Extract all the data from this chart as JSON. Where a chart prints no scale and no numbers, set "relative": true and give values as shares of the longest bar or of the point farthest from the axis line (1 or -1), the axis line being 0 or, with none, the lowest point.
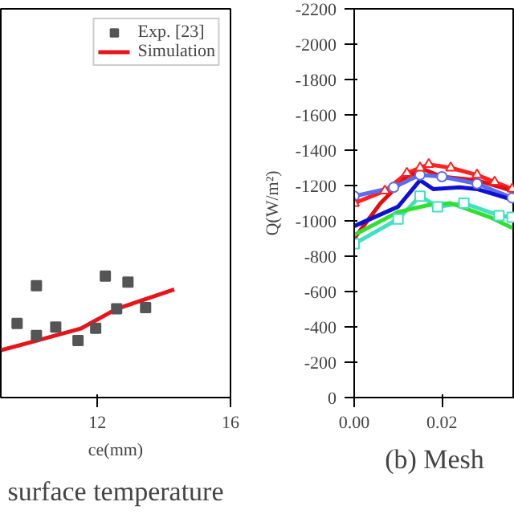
{
  "chart_data": [
    {
      "type": "scatter",
      "title": "surface temperature",
      "xlabel": "ce(mm)",
      "relative": true,
      "xlim": [
        9.1,
        16
      ],
      "xticks": [
        12,
        16
      ],
      "legend": "top right",
      "tick_labels": "x",
      "series": [
        {
          "name": "Exp. [23]",
          "type": "scatter",
          "color": "#555555",
          "marker": "square",
          "x": [
            9.59,
            10.17,
            10.17,
            10.75,
            11.42,
            11.95,
            12.24,
            12.58,
            12.92,
            13.45
          ],
          "values": [
            0.61,
            0.51,
            0.92,
            0.58,
            0.47,
            0.57,
            1.0,
            0.73,
            0.95,
            0.74
          ]
        },
        {
          "name": "Simulation",
          "type": "line",
          "color": "#e8141c",
          "marker": "none",
          "x": [
            9.11,
            10.07,
            11.52,
            12.58,
            14.31
          ],
          "values": [
            0.39,
            0.46,
            0.57,
            0.73,
            0.89
          ]
        }
      ]
    },
    {
      "type": "line",
      "title": "(b) Mesh",
      "ylabel": "Q(W/m²)",
      "xlim": [
        0,
        0.0366
      ],
      "ylim": [
        0,
        -2200
      ],
      "xticks": [
        {
          "value": 0,
          "label": "0.00"
        },
        {
          "value": 0.02,
          "label": "0.02"
        }
      ],
      "yticks": [
        0,
        -200,
        -400,
        -600,
        -800,
        -1000,
        -1200,
        -1400,
        -1600,
        -1800,
        -2000,
        -2200
      ],
      "series": [
        {
          "color": "#ff2020",
          "marker": "triangle",
          "x": [
            0,
            0.007,
            0.012,
            0.015,
            0.017,
            0.022,
            0.028,
            0.032,
            0.036
          ],
          "values": [
            -1100,
            -1170,
            -1270,
            -1300,
            -1320,
            -1300,
            -1260,
            -1220,
            -1180
          ]
        },
        {
          "color": "#e01010",
          "marker": "none",
          "x": [
            0,
            0.006,
            0.012,
            0.016,
            0.02,
            0.028,
            0.036
          ],
          "values": [
            -900,
            -1100,
            -1250,
            -1290,
            -1250,
            -1230,
            -1170
          ]
        },
        {
          "color": "#5a6cf0",
          "marker": "circle",
          "x": [
            0,
            0.009,
            0.015,
            0.02,
            0.028,
            0.036
          ],
          "values": [
            -1140,
            -1190,
            -1260,
            -1250,
            -1210,
            -1130
          ]
        },
        {
          "color": "#1010d0",
          "marker": "none",
          "x": [
            0,
            0.01,
            0.015,
            0.018,
            0.024,
            0.028,
            0.036
          ],
          "values": [
            -970,
            -1080,
            -1230,
            -1180,
            -1190,
            -1180,
            -1120
          ]
        },
        {
          "color": "#40e0c0",
          "marker": "square",
          "x": [
            0,
            0.01,
            0.015,
            0.019,
            0.025,
            0.033,
            0.036
          ],
          "values": [
            -870,
            -1010,
            -1140,
            -1080,
            -1100,
            -1030,
            -1020
          ]
        },
        {
          "color": "#30e030",
          "marker": "none",
          "x": [
            0,
            0.01,
            0.017,
            0.022,
            0.031,
            0.036
          ],
          "values": [
            -920,
            -1050,
            -1090,
            -1100,
            -1020,
            -960
          ]
        }
      ]
    }
  ]
}
